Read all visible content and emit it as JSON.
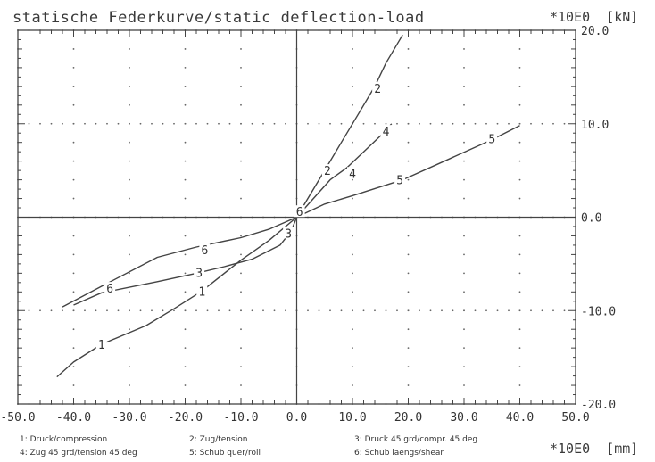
{
  "chart_data": {
    "type": "line",
    "title": "statische Federkurve/static deflection-load",
    "ylabel": "*10E0  [kN]",
    "xlabel": "*10E0  [mm]",
    "xlim": [
      -50,
      50
    ],
    "ylim": [
      -20,
      20
    ],
    "xticks": [
      "-50.0",
      "-40.0",
      "-30.0",
      "-20.0",
      "-10.0",
      "0.0",
      "10.0",
      "20.0",
      "30.0",
      "40.0",
      "50.0"
    ],
    "yticks": [
      "20.0",
      "10.0",
      "0.0",
      "-10.0",
      "-20.0"
    ],
    "grid": true,
    "legend": [
      "1: Druck/compression",
      "2: Zug/tension",
      "3: Druck 45 grd/compr. 45 deg",
      "4: Zug 45 grd/tension 45 deg",
      "5: Schub quer/roll",
      "6: Schub laengs/shear"
    ],
    "series": [
      {
        "name": "1",
        "x": [
          0,
          -5,
          -10,
          -17,
          -22,
          -27,
          -35,
          -40,
          -43
        ],
        "y": [
          0,
          -2.5,
          -4.6,
          -7.9,
          -9.8,
          -11.6,
          -13.6,
          -15.5,
          -17.1
        ]
      },
      {
        "name": "2",
        "x": [
          0,
          2,
          5,
          8,
          11,
          14,
          16,
          19
        ],
        "y": [
          0,
          2,
          5,
          8,
          11,
          14,
          16.5,
          19.5
        ]
      },
      {
        "name": "3",
        "x": [
          0,
          -1,
          -3,
          -8,
          -13,
          -18,
          -25,
          -35,
          -40
        ],
        "y": [
          0,
          -1.5,
          -3,
          -4.5,
          -5.3,
          -6,
          -6.9,
          -8.1,
          -9.4
        ]
      },
      {
        "name": "4",
        "x": [
          0,
          3,
          6,
          9,
          12,
          15,
          17
        ],
        "y": [
          0,
          2,
          4,
          5.3,
          7,
          8.7,
          10
        ]
      },
      {
        "name": "5",
        "x": [
          0,
          5,
          10,
          19,
          25,
          35,
          40
        ],
        "y": [
          0,
          1.4,
          2.3,
          4,
          5.6,
          8.3,
          9.8
        ]
      },
      {
        "name": "6",
        "x": [
          0,
          -5,
          -10,
          -18,
          -25,
          -35,
          -42
        ],
        "y": [
          0,
          -1.3,
          -2.2,
          -3.2,
          -4.3,
          -7.4,
          -9.6
        ]
      }
    ],
    "markers": [
      {
        "label": "1",
        "x": -17,
        "y": -7.9
      },
      {
        "label": "1",
        "x": -35,
        "y": -13.6
      },
      {
        "label": "2",
        "x": 5.5,
        "y": 5
      },
      {
        "label": "2",
        "x": 14.5,
        "y": 13.8
      },
      {
        "label": "3",
        "x": -1.5,
        "y": -1.7
      },
      {
        "label": "3",
        "x": -17.5,
        "y": -5.9
      },
      {
        "label": "4",
        "x": 10,
        "y": 4.7
      },
      {
        "label": "4",
        "x": 16,
        "y": 9.2
      },
      {
        "label": "5",
        "x": 18.5,
        "y": 4
      },
      {
        "label": "5",
        "x": 35,
        "y": 8.4
      },
      {
        "label": "6",
        "x": 0.5,
        "y": 0.6
      },
      {
        "label": "6",
        "x": -16.5,
        "y": -3.5
      },
      {
        "label": "6",
        "x": -33.5,
        "y": -7.6
      }
    ]
  }
}
